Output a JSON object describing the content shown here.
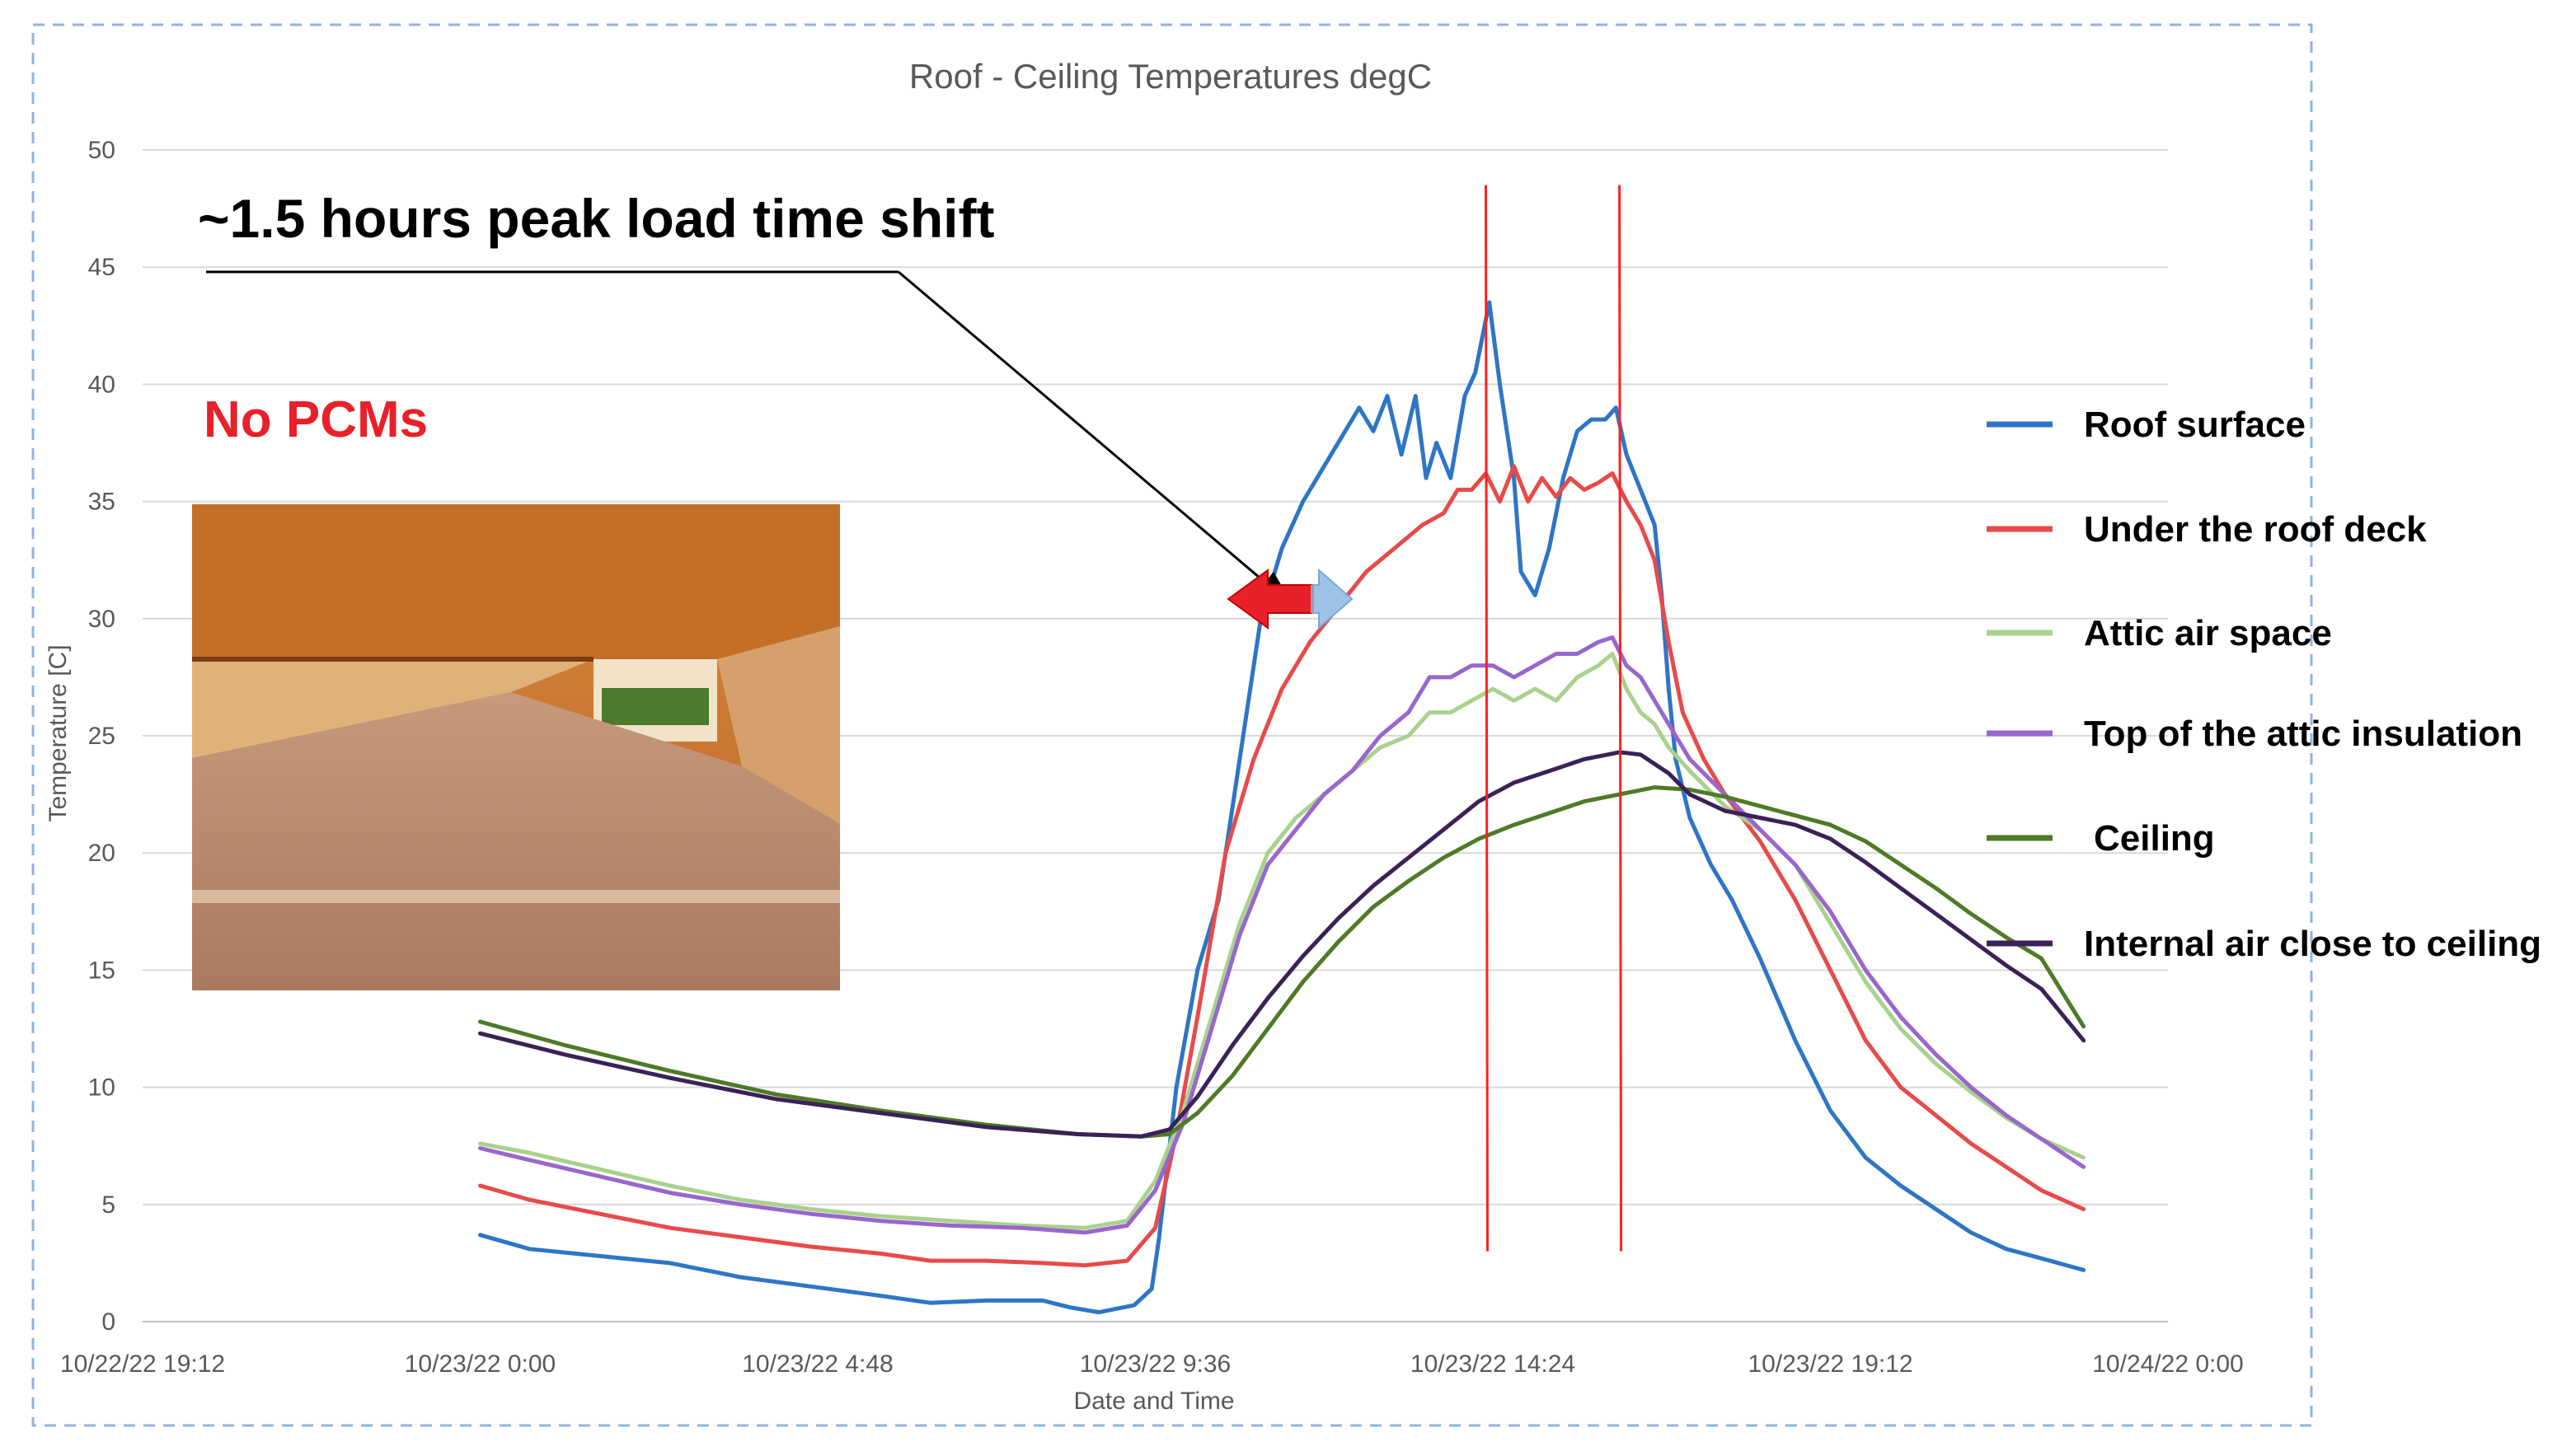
{
  "chart_data": {
    "type": "line",
    "title": "Roof - Ceiling Temperatures degC",
    "xlabel": "Date and Time",
    "ylabel": "Temperature [C]",
    "ylim": [
      0,
      50
    ],
    "yticks": [
      "0",
      "5",
      "10",
      "15",
      "20",
      "25",
      "30",
      "35",
      "40",
      "45",
      "50"
    ],
    "xticks": [
      "10/22/22 19:12",
      "10/23/22 0:00",
      "10/23/22 4:48",
      "10/23/22 9:36",
      "10/23/22 14:24",
      "10/23/22 19:12",
      "10/24/22 0:00"
    ],
    "grid": true,
    "legend_position": "right",
    "x_unit": "hours from 10/22/22 19:12",
    "series": [
      {
        "name": "Roof surface",
        "color": "#2e75c6",
        "points": [
          [
            4.8,
            3.7
          ],
          [
            5.5,
            3.1
          ],
          [
            6.5,
            2.8
          ],
          [
            7.5,
            2.5
          ],
          [
            8.5,
            1.9
          ],
          [
            9.5,
            1.5
          ],
          [
            10.5,
            1.1
          ],
          [
            11.2,
            0.8
          ],
          [
            12,
            0.9
          ],
          [
            12.8,
            0.9
          ],
          [
            13.2,
            0.6
          ],
          [
            13.6,
            0.4
          ],
          [
            14.1,
            0.7
          ],
          [
            14.35,
            1.4
          ],
          [
            14.45,
            3.5
          ],
          [
            14.7,
            10
          ],
          [
            15,
            15
          ],
          [
            15.3,
            18
          ],
          [
            15.6,
            24
          ],
          [
            15.9,
            30
          ],
          [
            16.2,
            33
          ],
          [
            16.5,
            35
          ],
          [
            16.8,
            36.5
          ],
          [
            17.1,
            38
          ],
          [
            17.3,
            39
          ],
          [
            17.5,
            38
          ],
          [
            17.7,
            39.5
          ],
          [
            17.9,
            37
          ],
          [
            18.1,
            39.5
          ],
          [
            18.25,
            36
          ],
          [
            18.4,
            37.5
          ],
          [
            18.6,
            36
          ],
          [
            18.8,
            39.5
          ],
          [
            18.95,
            40.5
          ],
          [
            19.15,
            43.5
          ],
          [
            19.3,
            40
          ],
          [
            19.5,
            36
          ],
          [
            19.6,
            32
          ],
          [
            19.8,
            31
          ],
          [
            20,
            33
          ],
          [
            20.2,
            36
          ],
          [
            20.4,
            38
          ],
          [
            20.6,
            38.5
          ],
          [
            20.8,
            38.5
          ],
          [
            20.95,
            39
          ],
          [
            21.1,
            37
          ],
          [
            21.3,
            35.5
          ],
          [
            21.5,
            34
          ],
          [
            21.6,
            31
          ],
          [
            21.7,
            27
          ],
          [
            21.8,
            24
          ],
          [
            22,
            21.5
          ],
          [
            22.3,
            19.5
          ],
          [
            22.6,
            18
          ],
          [
            23,
            15.5
          ],
          [
            23.5,
            12
          ],
          [
            24,
            9
          ],
          [
            24.5,
            7
          ],
          [
            25,
            5.8
          ],
          [
            25.5,
            4.8
          ],
          [
            26,
            3.8
          ],
          [
            26.5,
            3.1
          ],
          [
            27,
            2.7
          ],
          [
            27.6,
            2.2
          ]
        ]
      },
      {
        "name": "Under the roof deck",
        "color": "#e84a4a",
        "points": [
          [
            4.8,
            5.8
          ],
          [
            5.5,
            5.2
          ],
          [
            6.5,
            4.6
          ],
          [
            7.5,
            4
          ],
          [
            8.5,
            3.6
          ],
          [
            9.5,
            3.2
          ],
          [
            10.5,
            2.9
          ],
          [
            11.2,
            2.6
          ],
          [
            12,
            2.6
          ],
          [
            12.8,
            2.5
          ],
          [
            13.4,
            2.4
          ],
          [
            14,
            2.6
          ],
          [
            14.4,
            4
          ],
          [
            14.7,
            8
          ],
          [
            15,
            13
          ],
          [
            15.4,
            20
          ],
          [
            15.8,
            24
          ],
          [
            16.2,
            27
          ],
          [
            16.6,
            29
          ],
          [
            17,
            30.5
          ],
          [
            17.4,
            32
          ],
          [
            17.8,
            33
          ],
          [
            18.2,
            34
          ],
          [
            18.5,
            34.5
          ],
          [
            18.7,
            35.5
          ],
          [
            18.9,
            35.5
          ],
          [
            19.1,
            36.2
          ],
          [
            19.3,
            35
          ],
          [
            19.5,
            36.5
          ],
          [
            19.7,
            35
          ],
          [
            19.9,
            36
          ],
          [
            20.1,
            35.2
          ],
          [
            20.3,
            36
          ],
          [
            20.5,
            35.5
          ],
          [
            20.7,
            35.8
          ],
          [
            20.9,
            36.2
          ],
          [
            21.1,
            35
          ],
          [
            21.3,
            34
          ],
          [
            21.5,
            32.5
          ],
          [
            21.7,
            29
          ],
          [
            21.9,
            26
          ],
          [
            22.2,
            24
          ],
          [
            22.5,
            22.5
          ],
          [
            23,
            20.5
          ],
          [
            23.5,
            18
          ],
          [
            24,
            15
          ],
          [
            24.5,
            12
          ],
          [
            25,
            10
          ],
          [
            25.5,
            8.8
          ],
          [
            26,
            7.6
          ],
          [
            26.5,
            6.6
          ],
          [
            27,
            5.6
          ],
          [
            27.6,
            4.8
          ]
        ]
      },
      {
        "name": "Attic air space",
        "color": "#a9d18e",
        "points": [
          [
            4.8,
            7.6
          ],
          [
            5.5,
            7.2
          ],
          [
            6.5,
            6.5
          ],
          [
            7.5,
            5.8
          ],
          [
            8.5,
            5.2
          ],
          [
            9.5,
            4.8
          ],
          [
            10.5,
            4.5
          ],
          [
            11.5,
            4.3
          ],
          [
            12.5,
            4.1
          ],
          [
            13.4,
            4
          ],
          [
            14,
            4.3
          ],
          [
            14.4,
            6
          ],
          [
            14.8,
            9
          ],
          [
            15.2,
            13
          ],
          [
            15.6,
            17
          ],
          [
            16,
            20
          ],
          [
            16.4,
            21.5
          ],
          [
            16.8,
            22.5
          ],
          [
            17.2,
            23.5
          ],
          [
            17.6,
            24.5
          ],
          [
            18,
            25
          ],
          [
            18.3,
            26
          ],
          [
            18.6,
            26
          ],
          [
            18.9,
            26.5
          ],
          [
            19.2,
            27
          ],
          [
            19.5,
            26.5
          ],
          [
            19.8,
            27
          ],
          [
            20.1,
            26.5
          ],
          [
            20.4,
            27.5
          ],
          [
            20.7,
            28
          ],
          [
            20.9,
            28.5
          ],
          [
            21.1,
            27
          ],
          [
            21.3,
            26
          ],
          [
            21.5,
            25.5
          ],
          [
            21.7,
            24.5
          ],
          [
            22,
            23.5
          ],
          [
            22.5,
            22
          ],
          [
            23,
            21
          ],
          [
            23.5,
            19.5
          ],
          [
            24,
            17
          ],
          [
            24.5,
            14.5
          ],
          [
            25,
            12.5
          ],
          [
            25.5,
            11
          ],
          [
            26,
            9.8
          ],
          [
            26.5,
            8.7
          ],
          [
            27,
            7.8
          ],
          [
            27.6,
            7
          ]
        ]
      },
      {
        "name": "Top of the attic insulation",
        "color": "#9966cc",
        "points": [
          [
            4.8,
            7.4
          ],
          [
            5.5,
            6.9
          ],
          [
            6.5,
            6.2
          ],
          [
            7.5,
            5.5
          ],
          [
            8.5,
            5
          ],
          [
            9.5,
            4.6
          ],
          [
            10.5,
            4.3
          ],
          [
            11.5,
            4.1
          ],
          [
            12.5,
            4
          ],
          [
            13.4,
            3.8
          ],
          [
            14,
            4.1
          ],
          [
            14.4,
            5.6
          ],
          [
            14.8,
            8.5
          ],
          [
            15.2,
            12.5
          ],
          [
            15.6,
            16.5
          ],
          [
            16,
            19.5
          ],
          [
            16.4,
            21
          ],
          [
            16.8,
            22.5
          ],
          [
            17.2,
            23.5
          ],
          [
            17.6,
            25
          ],
          [
            18,
            26
          ],
          [
            18.3,
            27.5
          ],
          [
            18.6,
            27.5
          ],
          [
            18.9,
            28
          ],
          [
            19.2,
            28
          ],
          [
            19.5,
            27.5
          ],
          [
            19.8,
            28
          ],
          [
            20.1,
            28.5
          ],
          [
            20.4,
            28.5
          ],
          [
            20.7,
            29
          ],
          [
            20.9,
            29.2
          ],
          [
            21.1,
            28
          ],
          [
            21.3,
            27.5
          ],
          [
            21.5,
            26.5
          ],
          [
            21.7,
            25.5
          ],
          [
            22,
            24
          ],
          [
            22.5,
            22.5
          ],
          [
            23,
            21
          ],
          [
            23.5,
            19.5
          ],
          [
            24,
            17.5
          ],
          [
            24.5,
            15
          ],
          [
            25,
            13
          ],
          [
            25.5,
            11.4
          ],
          [
            26,
            10
          ],
          [
            26.5,
            8.8
          ],
          [
            27,
            7.8
          ],
          [
            27.6,
            6.6
          ]
        ]
      },
      {
        "name": "Ceiling",
        "color": "#4f7a28",
        "points": [
          [
            4.8,
            12.8
          ],
          [
            6,
            11.8
          ],
          [
            7.5,
            10.7
          ],
          [
            9,
            9.7
          ],
          [
            10.5,
            9
          ],
          [
            12,
            8.4
          ],
          [
            13.3,
            8
          ],
          [
            14.2,
            7.9
          ],
          [
            14.6,
            8
          ],
          [
            15,
            8.9
          ],
          [
            15.5,
            10.5
          ],
          [
            16,
            12.5
          ],
          [
            16.5,
            14.5
          ],
          [
            17,
            16.2
          ],
          [
            17.5,
            17.7
          ],
          [
            18,
            18.8
          ],
          [
            18.5,
            19.8
          ],
          [
            19,
            20.6
          ],
          [
            19.5,
            21.2
          ],
          [
            20,
            21.7
          ],
          [
            20.5,
            22.2
          ],
          [
            21,
            22.5
          ],
          [
            21.5,
            22.8
          ],
          [
            22,
            22.7
          ],
          [
            22.5,
            22.4
          ],
          [
            23,
            22
          ],
          [
            23.5,
            21.6
          ],
          [
            24,
            21.2
          ],
          [
            24.5,
            20.5
          ],
          [
            25,
            19.5
          ],
          [
            25.5,
            18.5
          ],
          [
            26,
            17.4
          ],
          [
            26.5,
            16.4
          ],
          [
            27,
            15.5
          ],
          [
            27.6,
            12.6
          ]
        ]
      },
      {
        "name": "Internal air close to ceiling",
        "color": "#3b2157",
        "points": [
          [
            4.8,
            12.3
          ],
          [
            6,
            11.4
          ],
          [
            7.5,
            10.4
          ],
          [
            9,
            9.5
          ],
          [
            10.5,
            8.9
          ],
          [
            12,
            8.3
          ],
          [
            13.3,
            8
          ],
          [
            14.2,
            7.9
          ],
          [
            14.6,
            8.2
          ],
          [
            15,
            9.6
          ],
          [
            15.5,
            11.8
          ],
          [
            16,
            13.8
          ],
          [
            16.5,
            15.6
          ],
          [
            17,
            17.2
          ],
          [
            17.5,
            18.6
          ],
          [
            18,
            19.8
          ],
          [
            18.5,
            21
          ],
          [
            19,
            22.2
          ],
          [
            19.5,
            23
          ],
          [
            20,
            23.5
          ],
          [
            20.5,
            24
          ],
          [
            21,
            24.3
          ],
          [
            21.3,
            24.2
          ],
          [
            21.7,
            23.4
          ],
          [
            22,
            22.5
          ],
          [
            22.5,
            21.8
          ],
          [
            23,
            21.5
          ],
          [
            23.5,
            21.2
          ],
          [
            24,
            20.6
          ],
          [
            24.5,
            19.6
          ],
          [
            25,
            18.5
          ],
          [
            25.5,
            17.4
          ],
          [
            26,
            16.3
          ],
          [
            26.5,
            15.2
          ],
          [
            27,
            14.2
          ],
          [
            27.6,
            12
          ]
        ]
      }
    ],
    "annotations": {
      "time_shift": "~1.5 hours peak load time shift",
      "no_pcms": "No PCMs",
      "peak_markers_x": [
        19.1,
        21.0
      ]
    }
  }
}
